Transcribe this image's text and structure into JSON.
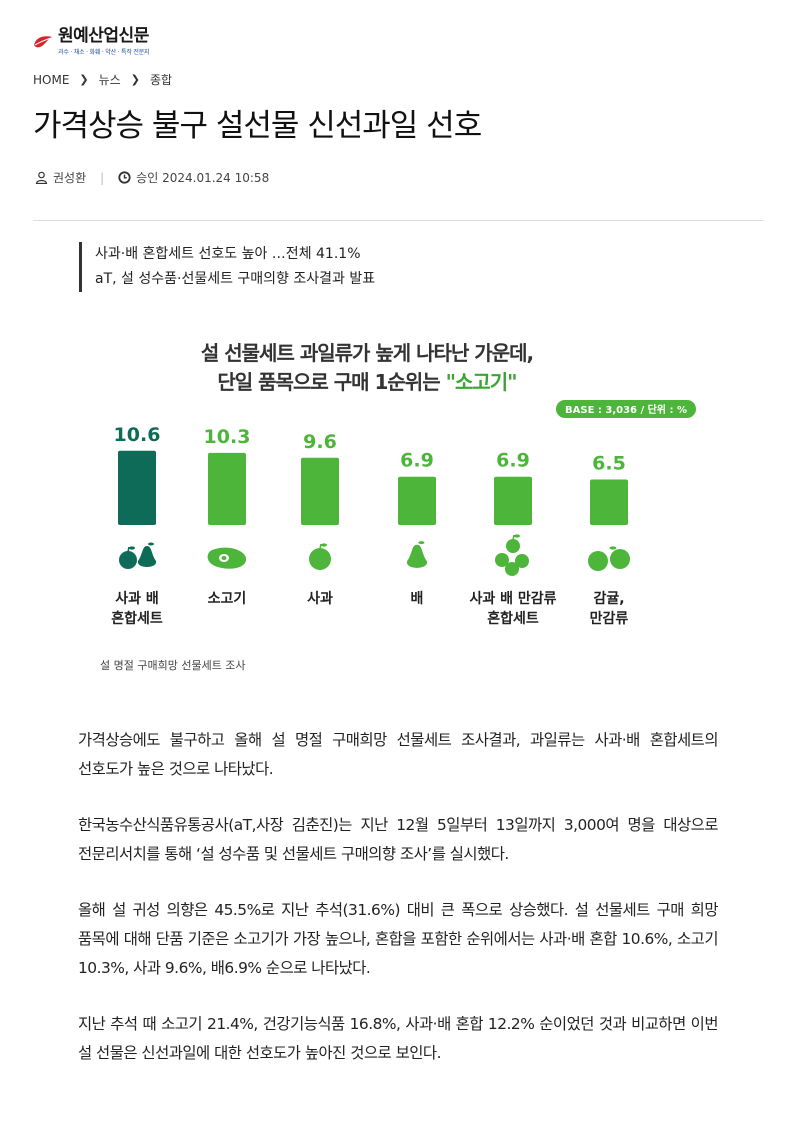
{
  "logo": {
    "name": "원예산업신문",
    "tagline": "과수 · 채소 · 화훼 · 약산 · 특작 전문지"
  },
  "breadcrumb": [
    "HOME",
    "뉴스",
    "종합"
  ],
  "article": {
    "title": "가격상승 불구 설선물 신선과일 선호",
    "author": "권성환",
    "approved_label": "승인",
    "datetime": "2024.01.24 10:58",
    "subtitles": [
      "사과·배 혼합세트 선호도 높아 …전체 41.1%",
      "aT, 설 성수품·선물세트 구매의향 조사결과 발표"
    ],
    "image_caption": "설 명절 구매희망 선물세트 조사",
    "paragraphs": [
      "가격상승에도 불구하고 올해 설 명절 구매희망 선물세트 조사결과, 과일류는 사과·배 혼합세트의 선호도가 높은 것으로 나타났다.",
      "한국농수산식품유통공사(aT,사장 김춘진)는 지난 12월 5일부터 13일까지 3,000여 명을 대상으로 전문리서치를 통해 ‘설 성수품 및 선물세트 구매의향 조사’를 실시했다.",
      "올해 설 귀성 의향은 45.5%로 지난 추석(31.6%) 대비 큰 폭으로 상승했다. 설 선물세트 구매 희망 품목에 대해 단품 기준은 소고기가 가장 높으나, 혼합을 포함한 순위에서는 사과·배 혼합 10.6%, 소고기 10.3%, 사과 9.6%, 배6.9% 순으로 나타났다.",
      "지난 추석 때 소고기 21.4%, 건강기능식품 16.8%, 사과·배 혼합 12.2% 순이었던 것과 비교하면 이번 설 선물은 신선과일에 대한 선호도가 높아진 것으로 보인다."
    ]
  },
  "chart_data": {
    "type": "bar",
    "title_line1": "설 선물세트 과일류가 높게 나타난 가운데,",
    "title_line2_prefix": "단일 품목으로 구매 1순위는 ",
    "title_line2_highlight": "\"소고기\"",
    "base_note": "BASE : 3,036 / 단위 : %",
    "categories": [
      {
        "label": [
          "사과 배",
          "혼합세트"
        ],
        "icon": "apple-pear-icon"
      },
      {
        "label": [
          "소고기"
        ],
        "icon": "beef-icon"
      },
      {
        "label": [
          "사과"
        ],
        "icon": "apple-icon"
      },
      {
        "label": [
          "배"
        ],
        "icon": "pear-icon"
      },
      {
        "label": [
          "사과 배 만감류",
          "혼합세트"
        ],
        "icon": "mixed-fruit-icon"
      },
      {
        "label": [
          "감귤,",
          "만감류"
        ],
        "icon": "tangerine-icon"
      }
    ],
    "values": [
      10.6,
      10.3,
      9.6,
      6.9,
      6.9,
      6.5
    ],
    "value_labels": [
      "10.6",
      "10.3",
      "9.6",
      "6.9",
      "6.9",
      "6.5"
    ],
    "highlight_color": "#0e6b57",
    "bar_color": "#4cb53a",
    "title_highlight_color": "#3aa632"
  }
}
